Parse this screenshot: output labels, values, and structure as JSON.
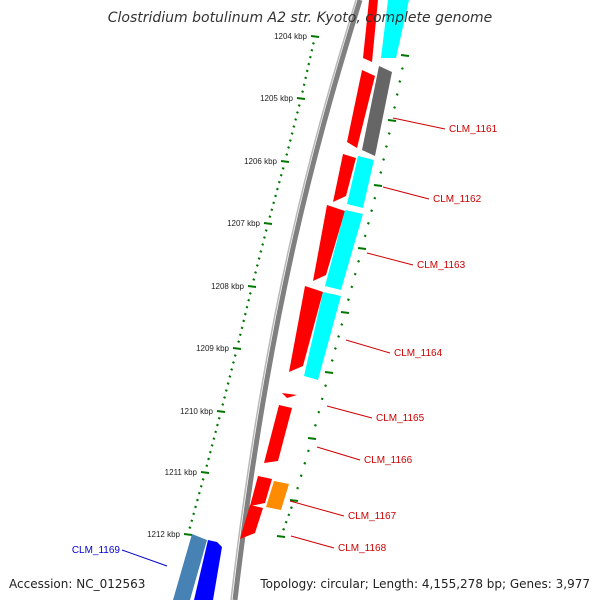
{
  "title": "Clostridium botulinum A2 str. Kyoto, complete genome",
  "footer": {
    "accession": "Accession: NC_012563",
    "topology": "Topology: circular; Length: 4,155,278 bp; Genes: 3,977"
  },
  "scale": {
    "labels": [
      "1204 kbp",
      "1205 kbp",
      "1206 kbp",
      "1207 kbp",
      "1208 kbp",
      "1209 kbp",
      "1210 kbp",
      "1211 kbp",
      "1212 kbp"
    ]
  },
  "colors": {
    "red_gene": "#ff0000",
    "cyan_gene": "#00ffff",
    "gray_gene": "#666666",
    "orange_gene": "#ff8c00",
    "blue_gene": "#0000ff",
    "steel_gene": "#4682b4",
    "tick_green": "#007700",
    "backbone": "#808080",
    "label_red": "#cc0000",
    "label_blue": "#0000cc"
  },
  "gene_labels": [
    {
      "text": "CLM_1161",
      "color": "label_red"
    },
    {
      "text": "CLM_1162",
      "color": "label_red"
    },
    {
      "text": "CLM_1163",
      "color": "label_red"
    },
    {
      "text": "CLM_1164",
      "color": "label_red"
    },
    {
      "text": "CLM_1165",
      "color": "label_red"
    },
    {
      "text": "CLM_1166",
      "color": "label_red"
    },
    {
      "text": "CLM_1167",
      "color": "label_red"
    },
    {
      "text": "CLM_1168",
      "color": "label_red"
    },
    {
      "text": "CLM_1169",
      "color": "label_blue"
    }
  ]
}
